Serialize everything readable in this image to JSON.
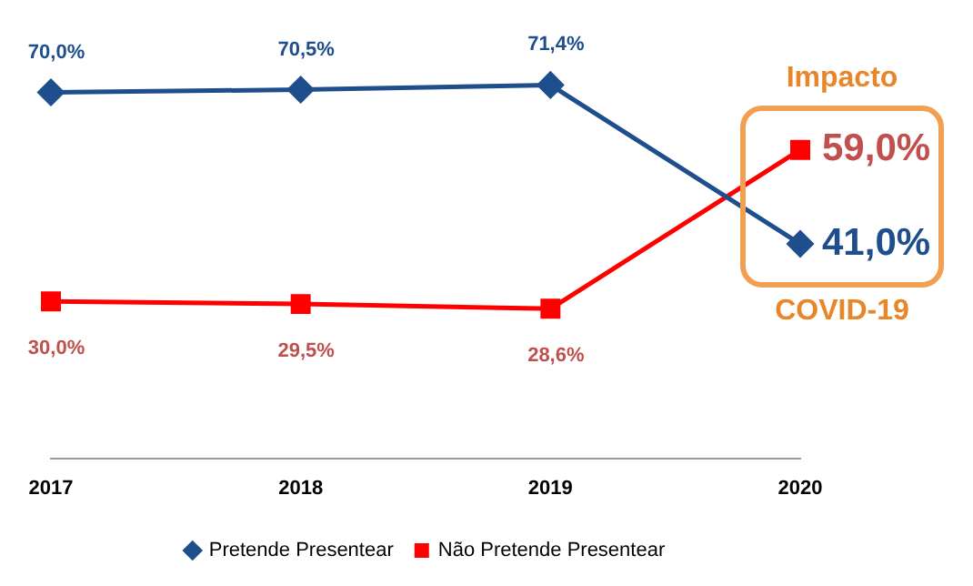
{
  "chart_data": {
    "type": "line",
    "categories": [
      "2017",
      "2018",
      "2019",
      "2020"
    ],
    "series": [
      {
        "name": "Pretende Presentear",
        "color": "#1f4e8c",
        "marker": "diamond",
        "values": [
          70.0,
          70.5,
          71.4,
          41.0
        ],
        "value_labels": [
          "70,0%",
          "70,5%",
          "71,4%",
          "41,0%"
        ]
      },
      {
        "name": "Não Pretende Presentear",
        "color": "#ff0000",
        "marker": "square",
        "values": [
          30.0,
          29.5,
          28.6,
          59.0
        ],
        "value_labels": [
          "30,0%",
          "29,5%",
          "28,6%",
          "59,0%"
        ]
      }
    ],
    "tick_labels": "x",
    "grid": false,
    "legend": "bottom",
    "line_style": "solid",
    "annotations": [
      "Impacto",
      "COVID-19"
    ]
  }
}
